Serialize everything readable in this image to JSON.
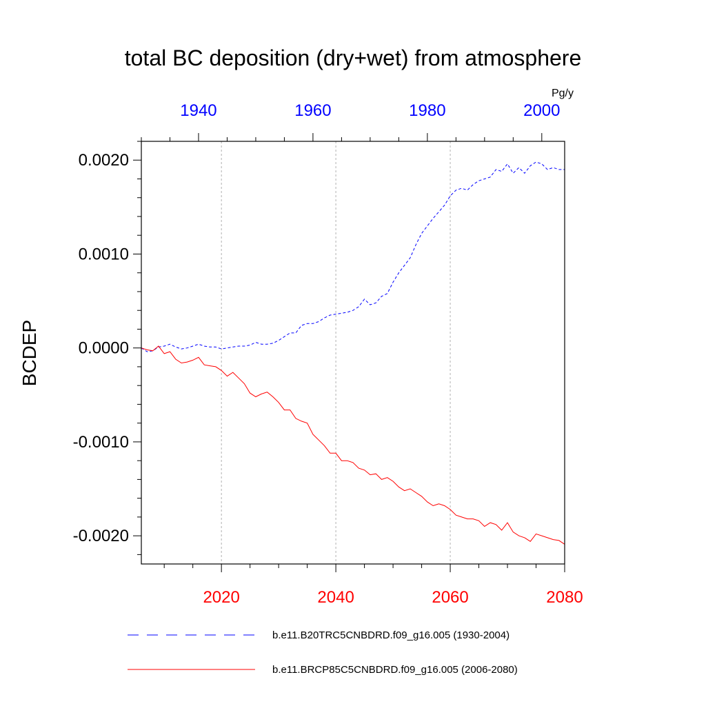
{
  "chart_data": {
    "type": "line",
    "title": "total BC deposition (dry+wet) from atmosphere",
    "ylabel": "BCDEP",
    "units": "Pg/y",
    "ylim": [
      -0.0023,
      0.0022
    ],
    "yticks": [
      0.002,
      0.001,
      0.0,
      -0.001,
      -0.002
    ],
    "ytick_labels": [
      "0.0020",
      "0.0010",
      "0.0000",
      "-0.0010",
      "-0.0020"
    ],
    "grid": "vertical dashed at major bottom ticks",
    "legend_position": "bottom",
    "top_axis": {
      "xlim": [
        1930,
        2004
      ],
      "ticks": [
        1940,
        1960,
        1980,
        2000
      ],
      "tick_labels": [
        "1940",
        "1960",
        "1980",
        "2000"
      ],
      "color": "#0000ff"
    },
    "bottom_axis": {
      "xlim": [
        2006,
        2080
      ],
      "ticks": [
        2020,
        2040,
        2060,
        2080
      ],
      "tick_labels": [
        "2020",
        "2040",
        "2060",
        "2080"
      ],
      "color": "#ff0000"
    },
    "series": [
      {
        "name": "b.e11.B20TRC5CNBDRD.f09_g16.005 (1930-2004)",
        "axis": "top",
        "color": "#0000ff",
        "style": "dashed",
        "x": [
          1930,
          1931,
          1932,
          1933,
          1934,
          1935,
          1936,
          1937,
          1938,
          1939,
          1940,
          1941,
          1942,
          1943,
          1944,
          1945,
          1946,
          1947,
          1948,
          1949,
          1950,
          1951,
          1952,
          1953,
          1954,
          1955,
          1956,
          1957,
          1958,
          1959,
          1960,
          1961,
          1962,
          1963,
          1964,
          1965,
          1966,
          1967,
          1968,
          1969,
          1970,
          1971,
          1972,
          1973,
          1974,
          1975,
          1976,
          1977,
          1978,
          1979,
          1980,
          1981,
          1982,
          1983,
          1984,
          1985,
          1986,
          1987,
          1988,
          1989,
          1990,
          1991,
          1992,
          1993,
          1994,
          1995,
          1996,
          1997,
          1998,
          1999,
          2000,
          2001,
          2002,
          2003,
          2004
        ],
        "values": [
          0.0,
          -4e-05,
          -3e-05,
          1e-05,
          2e-05,
          4e-05,
          1e-05,
          -1e-05,
          0.0,
          2e-05,
          4e-05,
          2e-05,
          1e-05,
          1e-05,
          -1e-05,
          0.0,
          1e-05,
          2e-05,
          2e-05,
          3e-05,
          6e-05,
          4e-05,
          4e-05,
          5e-05,
          8e-05,
          0.00012,
          0.00016,
          0.00016,
          0.00024,
          0.00026,
          0.00026,
          0.00028,
          0.00032,
          0.00035,
          0.00036,
          0.00037,
          0.00038,
          0.0004,
          0.00044,
          0.00052,
          0.00046,
          0.00048,
          0.00055,
          0.00058,
          0.0007,
          0.0008,
          0.00088,
          0.00096,
          0.0011,
          0.00122,
          0.0013,
          0.00138,
          0.00145,
          0.00152,
          0.00162,
          0.00168,
          0.0017,
          0.00168,
          0.00174,
          0.00178,
          0.0018,
          0.00182,
          0.0019,
          0.00188,
          0.00196,
          0.00186,
          0.00192,
          0.00186,
          0.00194,
          0.00198,
          0.00196,
          0.0019,
          0.00192,
          0.0019,
          0.0019
        ]
      },
      {
        "name": "b.e11.BRCP85C5CNBDRD.f09_g16.005 (2006-2080)",
        "axis": "bottom",
        "color": "#ff0000",
        "style": "solid",
        "x": [
          2006,
          2007,
          2008,
          2009,
          2010,
          2011,
          2012,
          2013,
          2014,
          2015,
          2016,
          2017,
          2018,
          2019,
          2020,
          2021,
          2022,
          2023,
          2024,
          2025,
          2026,
          2027,
          2028,
          2029,
          2030,
          2031,
          2032,
          2033,
          2034,
          2035,
          2036,
          2037,
          2038,
          2039,
          2040,
          2041,
          2042,
          2043,
          2044,
          2045,
          2046,
          2047,
          2048,
          2049,
          2050,
          2051,
          2052,
          2053,
          2054,
          2055,
          2056,
          2057,
          2058,
          2059,
          2060,
          2061,
          2062,
          2063,
          2064,
          2065,
          2066,
          2067,
          2068,
          2069,
          2070,
          2071,
          2072,
          2073,
          2074,
          2075,
          2076,
          2077,
          2078,
          2079,
          2080
        ],
        "values": [
          0.0,
          -2e-05,
          -3e-05,
          2e-05,
          -6e-05,
          -4e-05,
          -0.00012,
          -0.00016,
          -0.00015,
          -0.00013,
          -0.0001,
          -0.00018,
          -0.00019,
          -0.0002,
          -0.00024,
          -0.0003,
          -0.00026,
          -0.00032,
          -0.00038,
          -0.00048,
          -0.00052,
          -0.00049,
          -0.00047,
          -0.00052,
          -0.00058,
          -0.00066,
          -0.00066,
          -0.00075,
          -0.00078,
          -0.0008,
          -0.00092,
          -0.00098,
          -0.00104,
          -0.00112,
          -0.00112,
          -0.0012,
          -0.0012,
          -0.00122,
          -0.00128,
          -0.0013,
          -0.00135,
          -0.00134,
          -0.0014,
          -0.00138,
          -0.00142,
          -0.00148,
          -0.00152,
          -0.0015,
          -0.00154,
          -0.00158,
          -0.00164,
          -0.00168,
          -0.00166,
          -0.00168,
          -0.00172,
          -0.00178,
          -0.0018,
          -0.00182,
          -0.00182,
          -0.00184,
          -0.0019,
          -0.00186,
          -0.00188,
          -0.00194,
          -0.00186,
          -0.00196,
          -0.002,
          -0.00202,
          -0.00206,
          -0.00198,
          -0.002,
          -0.00202,
          -0.00204,
          -0.00205,
          -0.00209
        ]
      }
    ]
  }
}
